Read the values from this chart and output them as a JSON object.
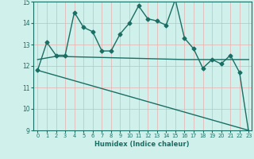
{
  "xlabel": "Humidex (Indice chaleur)",
  "ylabel": "",
  "bg_color": "#cff0eb",
  "grid_color": "#b0ddd8",
  "line_color": "#1a6e64",
  "xlim": [
    -0.5,
    23.3
  ],
  "ylim": [
    9,
    15
  ],
  "yticks": [
    9,
    10,
    11,
    12,
    13,
    14,
    15
  ],
  "xticks": [
    0,
    1,
    2,
    3,
    4,
    5,
    6,
    7,
    8,
    9,
    10,
    11,
    12,
    13,
    14,
    15,
    16,
    17,
    18,
    19,
    20,
    21,
    22,
    23
  ],
  "series1_x": [
    0,
    1,
    2,
    3,
    4,
    5,
    6,
    7,
    8,
    9,
    10,
    11,
    12,
    13,
    14,
    15,
    16,
    17,
    18,
    19,
    20,
    21,
    22,
    23
  ],
  "series1_y": [
    11.8,
    13.1,
    12.5,
    12.5,
    14.5,
    13.8,
    13.6,
    12.7,
    12.7,
    13.5,
    14.0,
    14.8,
    14.2,
    14.1,
    13.9,
    15.1,
    13.3,
    12.8,
    11.9,
    12.3,
    12.1,
    12.5,
    11.7,
    8.9
  ],
  "series2_x": [
    0,
    2,
    16,
    20,
    21,
    23
  ],
  "series2_y": [
    12.3,
    12.45,
    12.3,
    12.3,
    12.3,
    12.3
  ],
  "series3_x": [
    0,
    23
  ],
  "series3_y": [
    11.8,
    9.0
  ],
  "marker": "D",
  "markersize": 2.5,
  "linewidth": 1.0
}
